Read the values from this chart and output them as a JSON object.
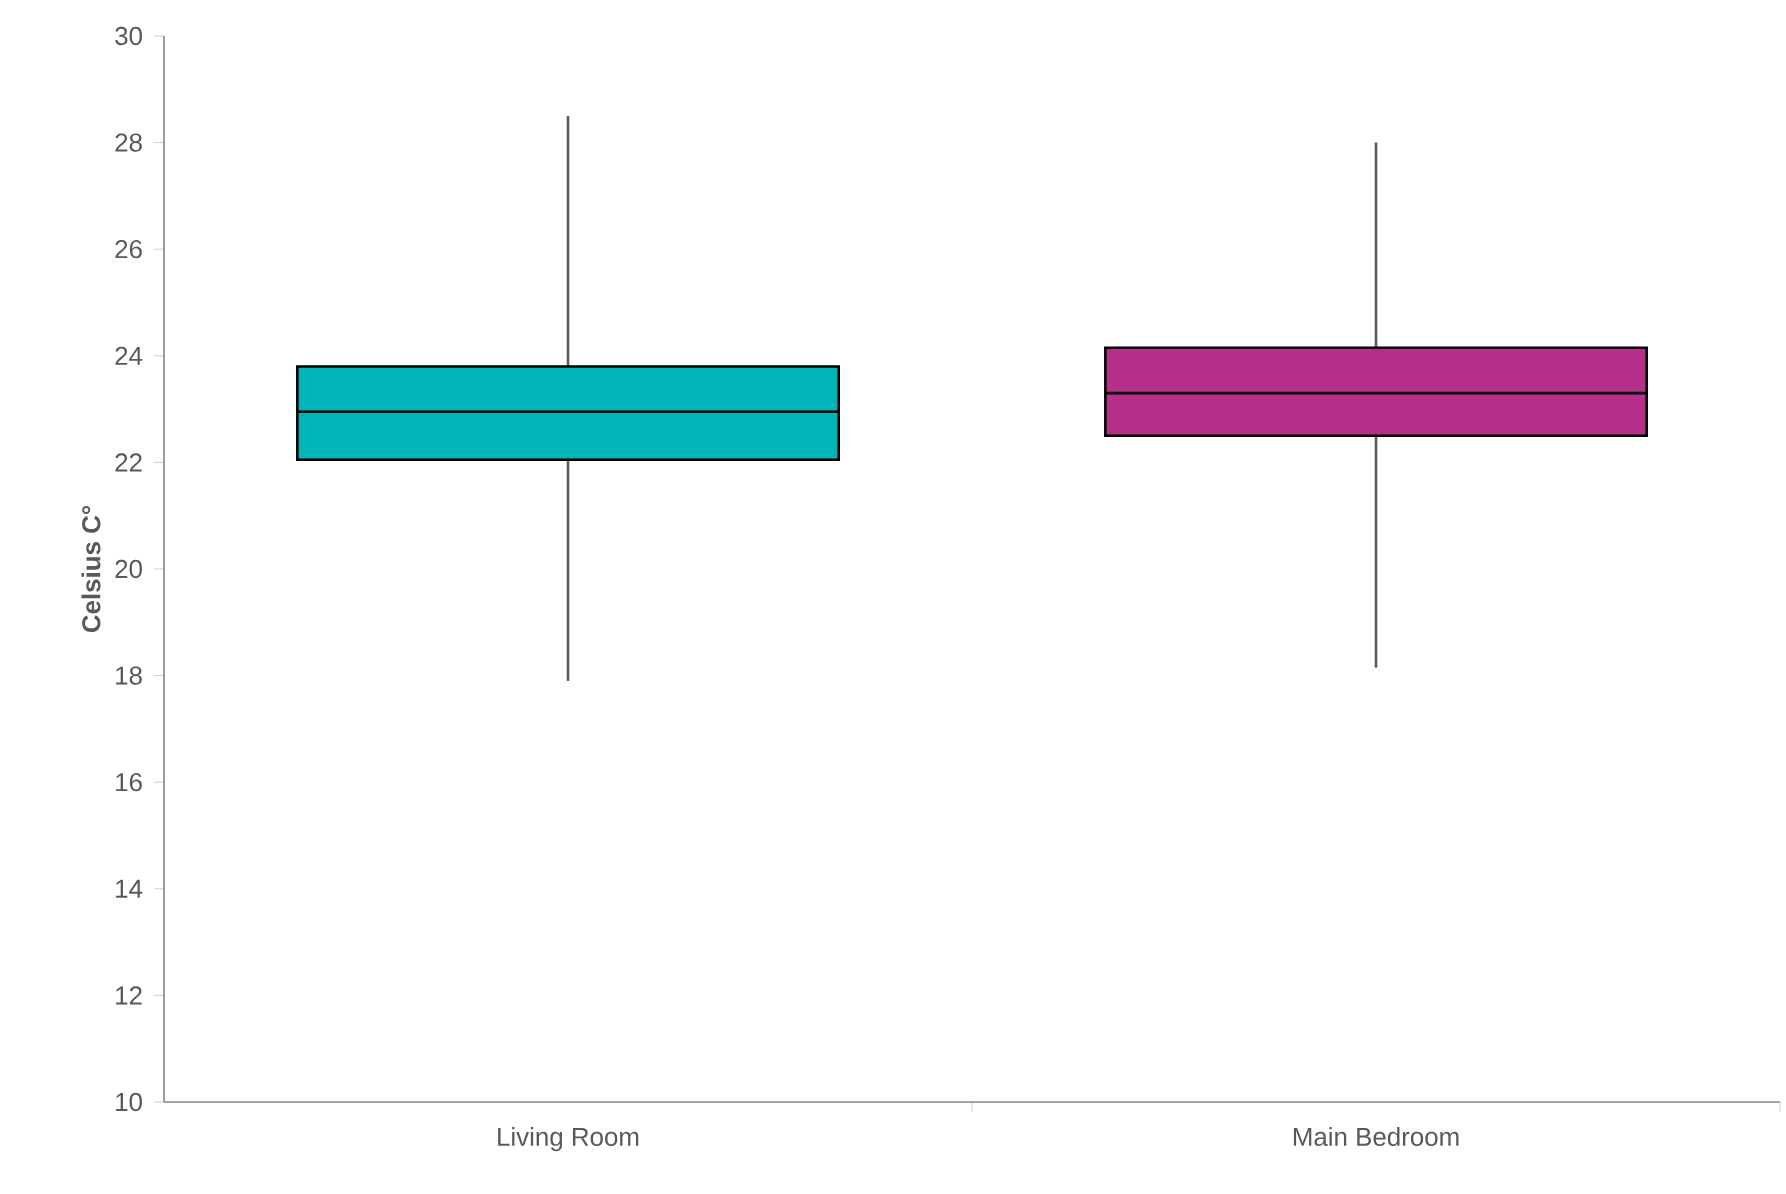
{
  "chart_data": {
    "type": "box",
    "ylabel": "Celsius C°",
    "categories": [
      "Living Room",
      "Main Bedroom"
    ],
    "colors": [
      "#00b5b8",
      "#b5308a"
    ],
    "boxes": [
      {
        "low": 17.9,
        "q1": 22.05,
        "median": 22.95,
        "q3": 23.8,
        "high": 28.5
      },
      {
        "low": 18.15,
        "q1": 22.5,
        "median": 23.3,
        "q3": 24.15,
        "high": 28.0
      }
    ],
    "ylim": [
      10,
      30
    ],
    "yticks": [
      10,
      12,
      14,
      16,
      18,
      20,
      22,
      24,
      26,
      28,
      30
    ],
    "grid": false
  }
}
